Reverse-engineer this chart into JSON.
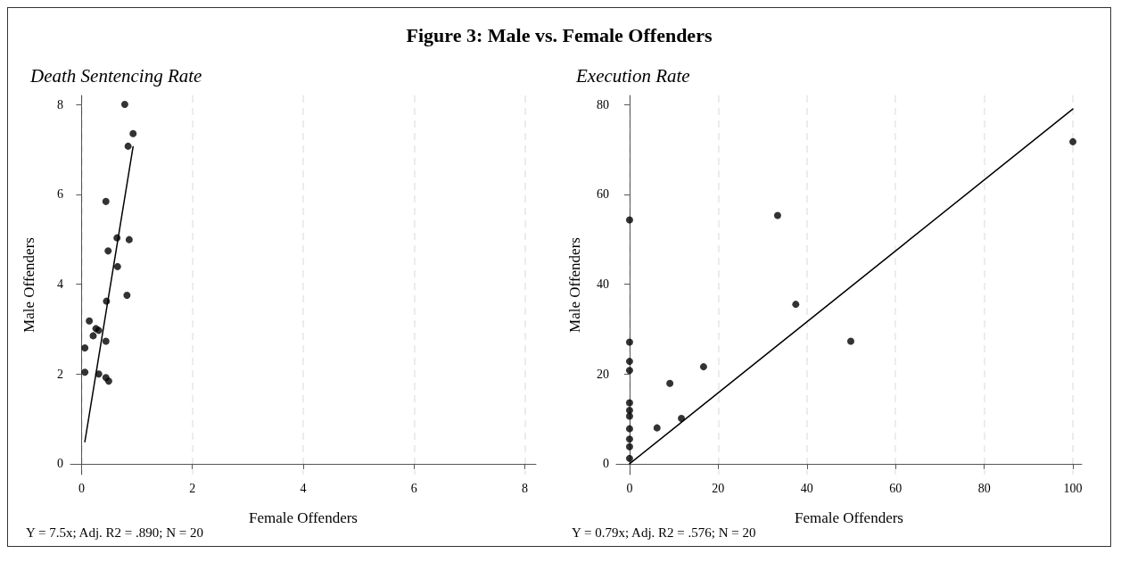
{
  "chart_data": [
    {
      "type": "scatter",
      "title": "Figure 3: Male vs. Female Offenders",
      "subtitle": "Death Sentencing Rate",
      "xlabel": "Female Offenders",
      "ylabel": "Male Offenders",
      "annotations": [
        "Y = 7.5x; Adj. R2 = .890; N = 20"
      ],
      "xlim": [
        -0.2,
        8.2
      ],
      "ylim": [
        -0.24,
        8.2
      ],
      "xticks": [
        0,
        2,
        4,
        6,
        8
      ],
      "yticks": [
        0,
        2,
        4,
        6,
        8
      ],
      "grid": "x",
      "series": [
        {
          "marker": "circle",
          "color": "#000000",
          "x": [
            0.78,
            0.93,
            0.84,
            0.44,
            0.64,
            0.86,
            0.48,
            0.65,
            0.82,
            0.45,
            0.14,
            0.26,
            0.31,
            0.21,
            0.44,
            0.06,
            0.06,
            0.31,
            0.44,
            0.49
          ],
          "values": [
            8.0,
            7.35,
            7.07,
            5.84,
            5.03,
            4.99,
            4.74,
            4.39,
            3.75,
            3.62,
            3.18,
            3.01,
            2.97,
            2.85,
            2.73,
            2.58,
            2.04,
            2.0,
            1.92,
            1.84
          ]
        },
        {
          "type": "line",
          "color": "#000000",
          "line_style": "solid",
          "x": [
            0.06,
            0.93
          ],
          "values": [
            0.49,
            7.06
          ]
        }
      ]
    },
    {
      "type": "scatter",
      "subtitle": "Execution Rate",
      "xlabel": "Female Offenders",
      "ylabel": "Male Offenders",
      "annotations": [
        "Y = 0.79x; Adj. R2 = .576; N = 20"
      ],
      "xlim": [
        -3,
        102
      ],
      "ylim": [
        -2.4,
        82
      ],
      "xticks": [
        0,
        20,
        40,
        60,
        80,
        100
      ],
      "yticks": [
        0,
        20,
        40,
        60,
        80
      ],
      "grid": "x",
      "series": [
        {
          "marker": "circle",
          "color": "#000000",
          "x": [
            0,
            33.4,
            37.5,
            0,
            0,
            0,
            16.7,
            9.1,
            0,
            0,
            0,
            11.7,
            0,
            6.2,
            0,
            0,
            0,
            49.9,
            100
          ],
          "values": [
            54.3,
            55.3,
            35.5,
            27.1,
            22.8,
            20.8,
            21.6,
            17.9,
            13.6,
            11.9,
            10.6,
            10.1,
            7.8,
            8.0,
            5.5,
            3.8,
            1.2,
            27.3,
            71.7
          ]
        },
        {
          "type": "line",
          "color": "#000000",
          "line_style": "solid",
          "x": [
            0,
            100
          ],
          "values": [
            0,
            79
          ]
        }
      ]
    }
  ]
}
